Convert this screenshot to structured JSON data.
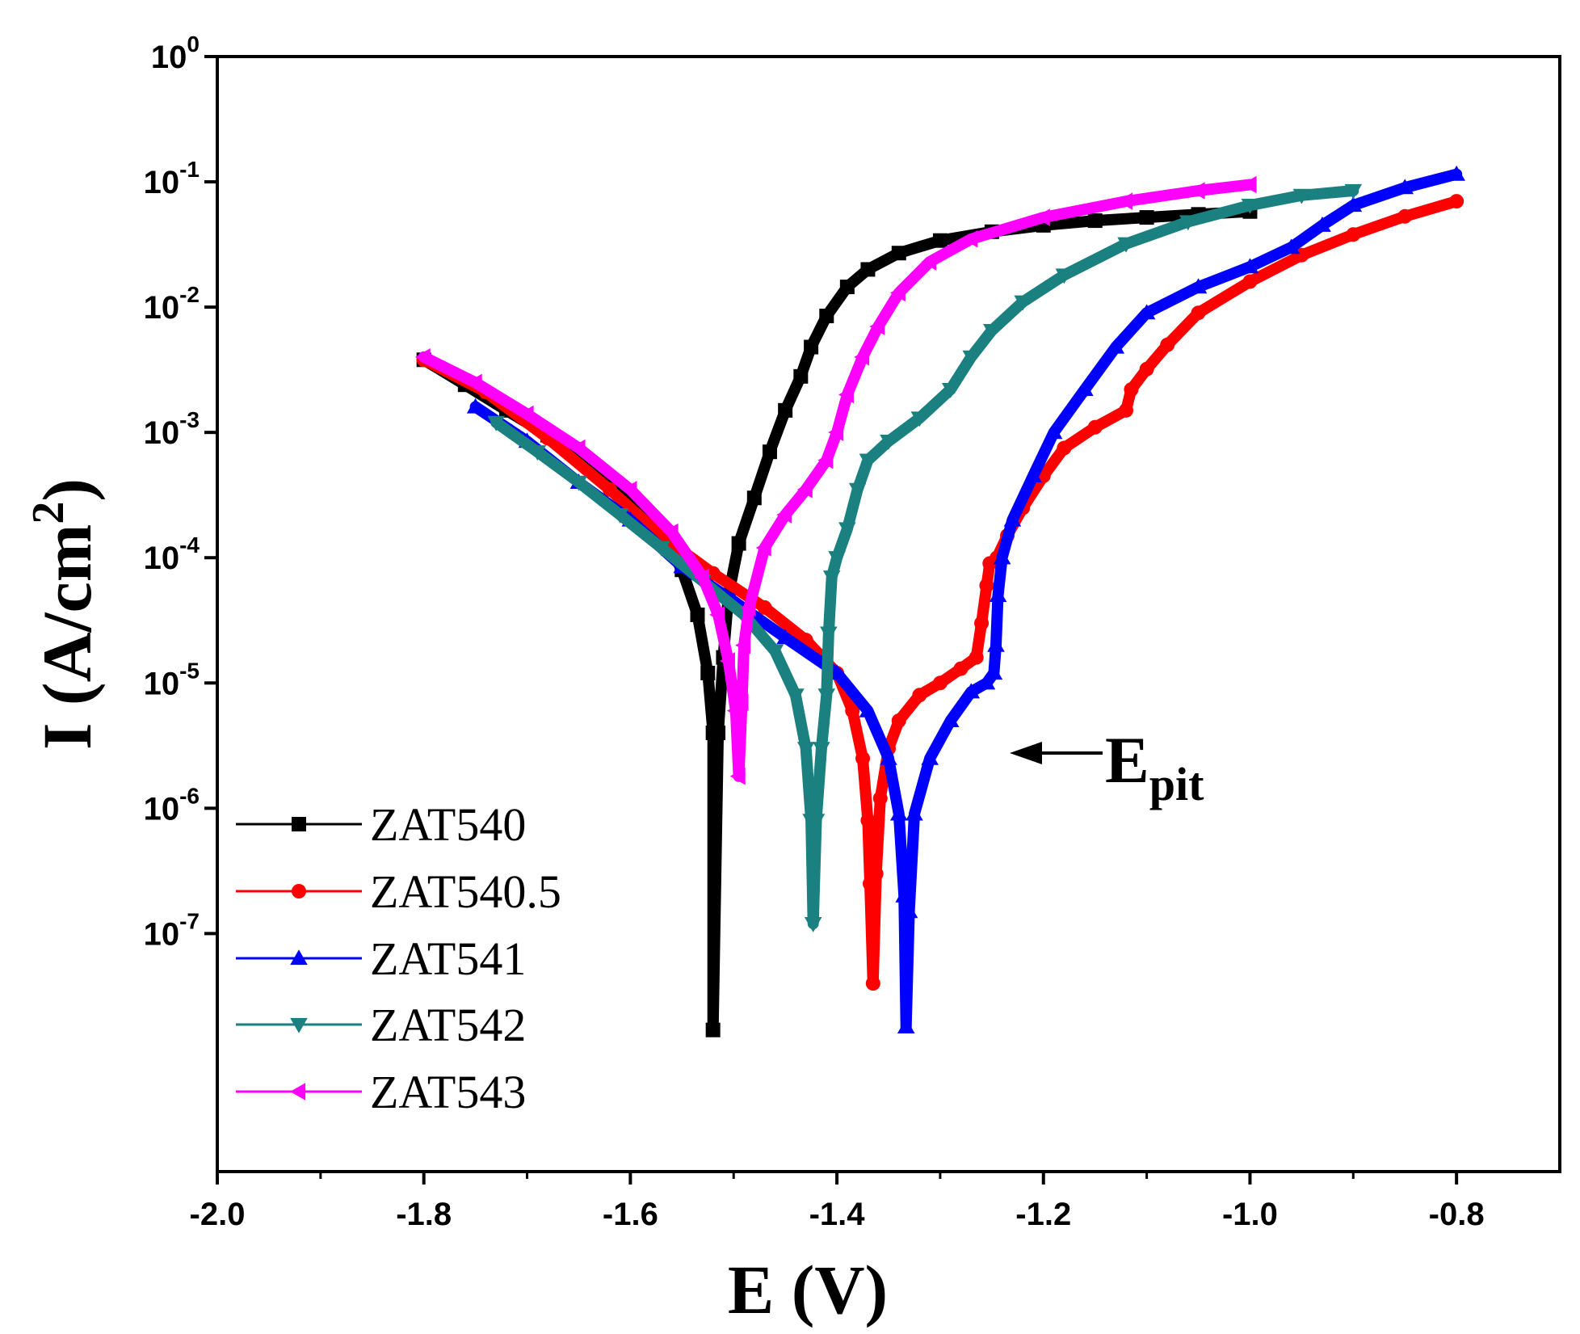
{
  "chart_data": {
    "type": "line",
    "title": "",
    "xlabel": "E (V)",
    "ylabel": {
      "main": "I (A/cm",
      "sup": "2",
      "close": ")"
    },
    "xlim": [
      -2.0,
      -0.7
    ],
    "ylim_log10": [
      -8.9,
      0
    ],
    "x_ticks": [
      {
        "value": -2.0,
        "label": "-2.0"
      },
      {
        "value": -1.8,
        "label": "-1.8"
      },
      {
        "value": -1.6,
        "label": "-1.6"
      },
      {
        "value": -1.4,
        "label": "-1.4"
      },
      {
        "value": -1.2,
        "label": "-1.2"
      },
      {
        "value": -1.0,
        "label": "-1.0"
      },
      {
        "value": -0.8,
        "label": "-0.8"
      }
    ],
    "y_ticks": [
      {
        "exp": 0,
        "base": "10",
        "sup": "0"
      },
      {
        "exp": -1,
        "base": "10",
        "sup": "-1"
      },
      {
        "exp": -2,
        "base": "10",
        "sup": "-2"
      },
      {
        "exp": -3,
        "base": "10",
        "sup": "-3"
      },
      {
        "exp": -4,
        "base": "10",
        "sup": "-4"
      },
      {
        "exp": -5,
        "base": "10",
        "sup": "-5"
      },
      {
        "exp": -6,
        "base": "10",
        "sup": "-6"
      },
      {
        "exp": -7,
        "base": "10",
        "sup": "-7"
      }
    ],
    "grid": false,
    "legend_position": "bottom-left",
    "annotation": {
      "base": "E",
      "sub": "pit",
      "target_x": -1.245,
      "target_y": 1.2e-05
    },
    "series": [
      {
        "name": "ZAT540",
        "color": "#000000",
        "marker": "square",
        "points": [
          [
            -1.8,
            0.0038
          ],
          [
            -1.76,
            0.0024
          ],
          [
            -1.72,
            0.0015
          ],
          [
            -1.68,
            0.00095
          ],
          [
            -1.64,
            0.00055
          ],
          [
            -1.6,
            0.0003
          ],
          [
            -1.57,
            0.000155
          ],
          [
            -1.55,
            8e-05
          ],
          [
            -1.535,
            3.5e-05
          ],
          [
            -1.525,
            1.2e-05
          ],
          [
            -1.52,
            4e-06
          ],
          [
            -1.52,
            1.7e-08
          ],
          [
            -1.515,
            4e-06
          ],
          [
            -1.51,
            1.6e-05
          ],
          [
            -1.505,
            5e-05
          ],
          [
            -1.495,
            0.00013
          ],
          [
            -1.48,
            0.0003
          ],
          [
            -1.465,
            0.0007
          ],
          [
            -1.45,
            0.0015
          ],
          [
            -1.435,
            0.0028
          ],
          [
            -1.425,
            0.0048
          ],
          [
            -1.41,
            0.0085
          ],
          [
            -1.39,
            0.0145
          ],
          [
            -1.37,
            0.02
          ],
          [
            -1.34,
            0.027
          ],
          [
            -1.3,
            0.034
          ],
          [
            -1.25,
            0.04
          ],
          [
            -1.2,
            0.045
          ],
          [
            -1.15,
            0.049
          ],
          [
            -1.1,
            0.052
          ],
          [
            -1.05,
            0.055
          ],
          [
            -1.0,
            0.058
          ]
        ]
      },
      {
        "name": "ZAT540.5",
        "color": "#ff0000",
        "marker": "circle",
        "points": [
          [
            -1.8,
            0.0038
          ],
          [
            -1.74,
            0.0021
          ],
          [
            -1.68,
            0.0009
          ],
          [
            -1.62,
            0.00035
          ],
          [
            -1.57,
            0.00015
          ],
          [
            -1.52,
            7.5e-05
          ],
          [
            -1.47,
            4e-05
          ],
          [
            -1.43,
            2.2e-05
          ],
          [
            -1.4,
            1.2e-05
          ],
          [
            -1.385,
            6e-06
          ],
          [
            -1.375,
            2.5e-06
          ],
          [
            -1.37,
            8e-07
          ],
          [
            -1.368,
            2.5e-07
          ],
          [
            -1.365,
            4e-08
          ],
          [
            -1.362,
            3e-07
          ],
          [
            -1.358,
            1.2e-06
          ],
          [
            -1.35,
            3e-06
          ],
          [
            -1.34,
            5e-06
          ],
          [
            -1.32,
            8e-06
          ],
          [
            -1.3,
            1e-05
          ],
          [
            -1.28,
            1.3e-05
          ],
          [
            -1.265,
            1.6e-05
          ],
          [
            -1.26,
            3e-05
          ],
          [
            -1.255,
            6e-05
          ],
          [
            -1.252,
            9e-05
          ],
          [
            -1.245,
            0.0001
          ],
          [
            -1.235,
            0.00015
          ],
          [
            -1.22,
            0.00025
          ],
          [
            -1.2,
            0.00045
          ],
          [
            -1.18,
            0.00075
          ],
          [
            -1.15,
            0.0011
          ],
          [
            -1.12,
            0.0015
          ],
          [
            -1.115,
            0.0022
          ],
          [
            -1.1,
            0.0032
          ],
          [
            -1.08,
            0.005
          ],
          [
            -1.05,
            0.009
          ],
          [
            -1.0,
            0.016
          ],
          [
            -0.95,
            0.026
          ],
          [
            -0.9,
            0.038
          ],
          [
            -0.85,
            0.053
          ],
          [
            -0.8,
            0.07
          ]
        ]
      },
      {
        "name": "ZAT541",
        "color": "#0000ff",
        "marker": "triangle-up",
        "points": [
          [
            -1.75,
            0.0016
          ],
          [
            -1.7,
            0.00085
          ],
          [
            -1.65,
            0.0004
          ],
          [
            -1.6,
            0.0002
          ],
          [
            -1.55,
            8.5e-05
          ],
          [
            -1.5,
            4.5e-05
          ],
          [
            -1.45,
            2.3e-05
          ],
          [
            -1.4,
            1.2e-05
          ],
          [
            -1.37,
            6e-06
          ],
          [
            -1.35,
            2.5e-06
          ],
          [
            -1.34,
            9e-07
          ],
          [
            -1.335,
            2e-07
          ],
          [
            -1.333,
            1.8e-08
          ],
          [
            -1.33,
            1.5e-07
          ],
          [
            -1.325,
            9e-07
          ],
          [
            -1.31,
            2.5e-06
          ],
          [
            -1.29,
            5e-06
          ],
          [
            -1.27,
            8.5e-06
          ],
          [
            -1.255,
            1e-05
          ],
          [
            -1.248,
            1.2e-05
          ],
          [
            -1.246,
            2e-05
          ],
          [
            -1.244,
            5e-05
          ],
          [
            -1.24,
            0.0001
          ],
          [
            -1.23,
            0.0002
          ],
          [
            -1.21,
            0.00045
          ],
          [
            -1.19,
            0.001
          ],
          [
            -1.16,
            0.0022
          ],
          [
            -1.13,
            0.0048
          ],
          [
            -1.1,
            0.009
          ],
          [
            -1.05,
            0.0145
          ],
          [
            -1.0,
            0.021
          ],
          [
            -0.96,
            0.03
          ],
          [
            -0.93,
            0.045
          ],
          [
            -0.9,
            0.065
          ],
          [
            -0.85,
            0.09
          ],
          [
            -0.8,
            0.115
          ]
        ]
      },
      {
        "name": "ZAT542",
        "color": "#1a8080",
        "marker": "triangle-down",
        "points": [
          [
            -1.73,
            0.0012
          ],
          [
            -1.69,
            0.0007
          ],
          [
            -1.65,
            0.0004
          ],
          [
            -1.61,
            0.00022
          ],
          [
            -1.57,
            0.00012
          ],
          [
            -1.53,
            6.5e-05
          ],
          [
            -1.49,
            3.5e-05
          ],
          [
            -1.46,
            1.8e-05
          ],
          [
            -1.44,
            8e-06
          ],
          [
            -1.43,
            3e-06
          ],
          [
            -1.425,
            8e-07
          ],
          [
            -1.423,
            1.2e-07
          ],
          [
            -1.42,
            8e-07
          ],
          [
            -1.415,
            3e-06
          ],
          [
            -1.41,
            8e-06
          ],
          [
            -1.408,
            2.5e-05
          ],
          [
            -1.405,
            7e-05
          ],
          [
            -1.4,
            0.0001
          ],
          [
            -1.39,
            0.00017
          ],
          [
            -1.38,
            0.00035
          ],
          [
            -1.37,
            0.0006
          ],
          [
            -1.35,
            0.00085
          ],
          [
            -1.32,
            0.0013
          ],
          [
            -1.29,
            0.0022
          ],
          [
            -1.27,
            0.004
          ],
          [
            -1.25,
            0.0065
          ],
          [
            -1.22,
            0.011
          ],
          [
            -1.18,
            0.018
          ],
          [
            -1.12,
            0.032
          ],
          [
            -1.06,
            0.048
          ],
          [
            -1.0,
            0.065
          ],
          [
            -0.95,
            0.078
          ],
          [
            -0.9,
            0.085
          ]
        ]
      },
      {
        "name": "ZAT543",
        "color": "#ff00ff",
        "marker": "triangle-left",
        "points": [
          [
            -1.8,
            0.004
          ],
          [
            -1.75,
            0.0025
          ],
          [
            -1.7,
            0.0014
          ],
          [
            -1.65,
            0.00075
          ],
          [
            -1.6,
            0.00035
          ],
          [
            -1.56,
            0.00016
          ],
          [
            -1.53,
            7e-05
          ],
          [
            -1.515,
            3.5e-05
          ],
          [
            -1.505,
            1.5e-05
          ],
          [
            -1.498,
            6e-06
          ],
          [
            -1.495,
            1.8e-06
          ],
          [
            -1.492,
            7e-06
          ],
          [
            -1.49,
            2e-05
          ],
          [
            -1.485,
            4e-05
          ],
          [
            -1.47,
            0.00012
          ],
          [
            -1.45,
            0.00022
          ],
          [
            -1.43,
            0.00035
          ],
          [
            -1.41,
            0.0006
          ],
          [
            -1.4,
            0.001
          ],
          [
            -1.39,
            0.002
          ],
          [
            -1.375,
            0.004
          ],
          [
            -1.36,
            0.007
          ],
          [
            -1.34,
            0.013
          ],
          [
            -1.31,
            0.023
          ],
          [
            -1.27,
            0.035
          ],
          [
            -1.2,
            0.052
          ],
          [
            -1.12,
            0.07
          ],
          [
            -1.05,
            0.085
          ],
          [
            -1.0,
            0.095
          ]
        ]
      }
    ]
  }
}
